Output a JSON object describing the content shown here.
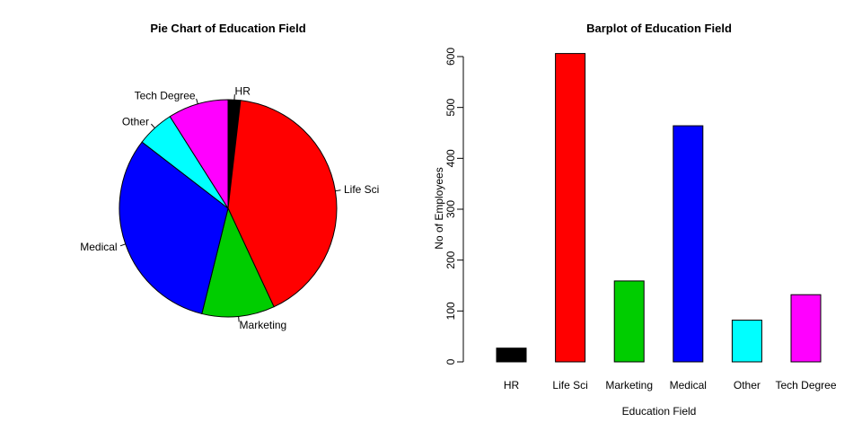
{
  "chart_data": [
    {
      "type": "pie",
      "title": "Pie Chart of Education Field",
      "categories": [
        "HR",
        "Life Sci",
        "Marketing",
        "Medical",
        "Other",
        "Tech Degree"
      ],
      "values": [
        27,
        606,
        159,
        464,
        82,
        132
      ],
      "colors": [
        "#000000",
        "#ff0000",
        "#00cd00",
        "#0000ff",
        "#00ffff",
        "#ff00ff"
      ],
      "start": "12 o'clock",
      "direction": "clockwise"
    },
    {
      "type": "bar",
      "title": "Barplot of Education Field",
      "xlabel": "Education Field",
      "ylabel": "No of Employees",
      "categories": [
        "HR",
        "Life Sci",
        "Marketing",
        "Medical",
        "Other",
        "Tech Degree"
      ],
      "values": [
        27,
        606,
        159,
        464,
        82,
        132
      ],
      "colors": [
        "#000000",
        "#ff0000",
        "#00cd00",
        "#0000ff",
        "#00ffff",
        "#ff00ff"
      ],
      "ylim": [
        0,
        600
      ],
      "yticks": [
        0,
        100,
        200,
        300,
        400,
        500,
        600
      ],
      "grid": false
    }
  ]
}
